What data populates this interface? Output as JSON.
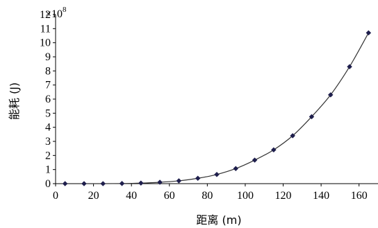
{
  "chart_data": {
    "type": "line",
    "title": "",
    "xlabel": "距离 (m)",
    "ylabel": "能耗 (J)",
    "y_multiplier": {
      "base": "×10",
      "exponent": "8"
    },
    "xlim": [
      0,
      170
    ],
    "ylim": [
      0,
      12
    ],
    "xticks": [
      0,
      20,
      40,
      60,
      80,
      100,
      120,
      140,
      160
    ],
    "yticks": [
      0,
      1,
      2,
      3,
      4,
      5,
      6,
      7,
      8,
      9,
      10,
      11,
      12
    ],
    "grid": false,
    "legend": "none",
    "marker": "diamond",
    "colors": {
      "marker": "#1f1f4d",
      "line": "#333333",
      "axis": "#000000"
    },
    "series": [
      {
        "x": [
          5,
          15,
          25,
          35,
          45,
          55,
          65,
          75,
          85,
          95,
          105,
          115,
          125,
          135,
          145,
          155,
          165
        ],
        "y": [
          0.0,
          0.0,
          0.0,
          0.01,
          0.04,
          0.1,
          0.2,
          0.38,
          0.65,
          1.07,
          1.67,
          2.4,
          3.4,
          4.75,
          6.3,
          8.3,
          10.7
        ]
      }
    ]
  }
}
